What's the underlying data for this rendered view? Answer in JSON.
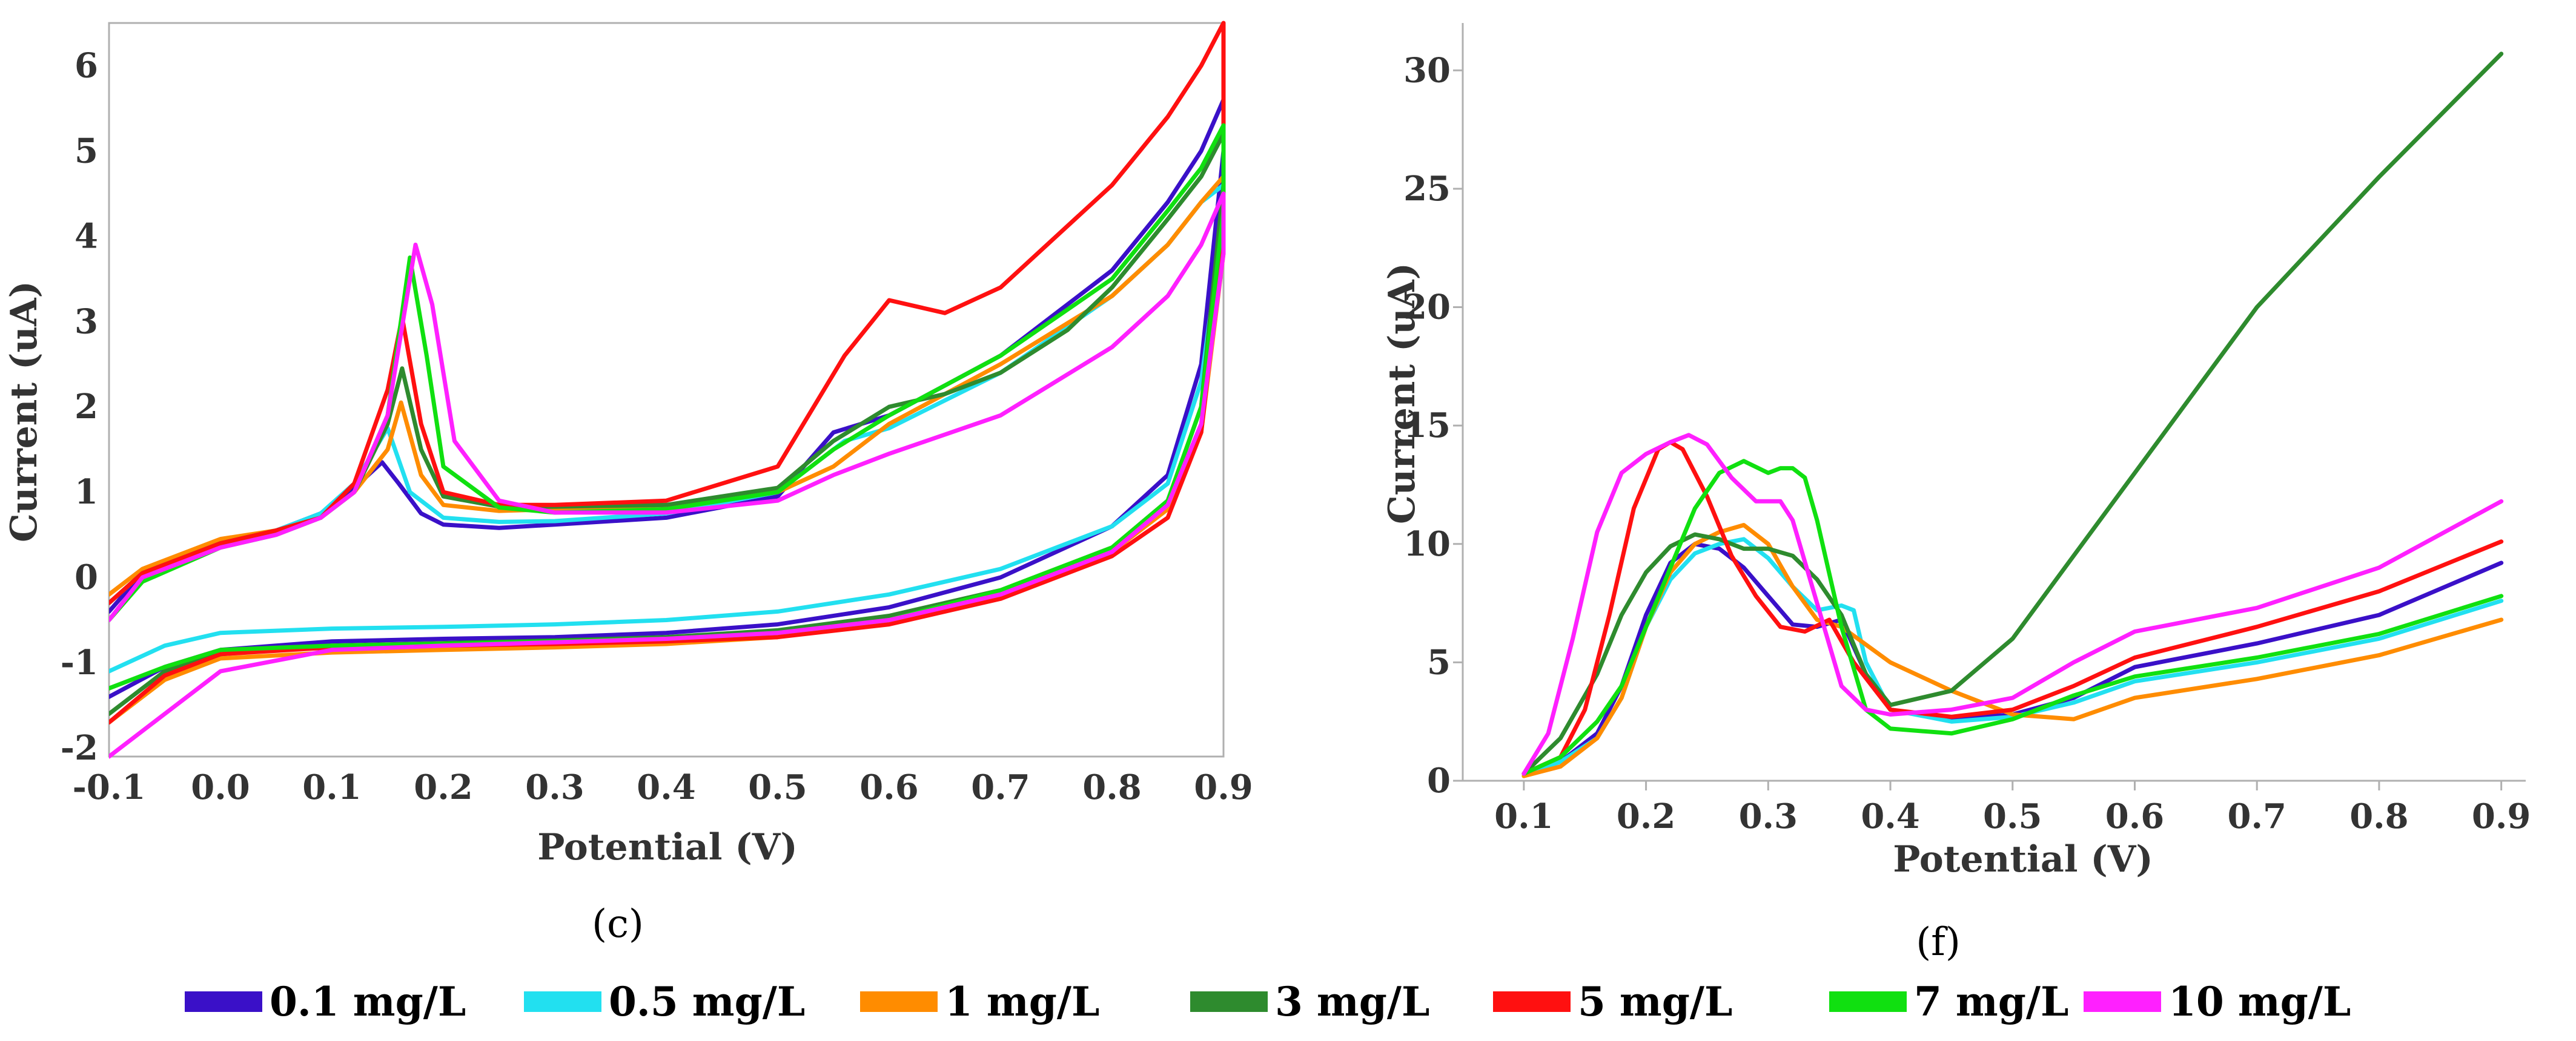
{
  "legend": {
    "items": [
      {
        "label": "0.1 mg/L",
        "color": "#3a10c8"
      },
      {
        "label": "0.5 mg/L",
        "color": "#22e0f0"
      },
      {
        "label": "1 mg/L",
        "color": "#ff8c00"
      },
      {
        "label": "3 mg/L",
        "color": "#2e8b2e"
      },
      {
        "label": "5 mg/L",
        "color": "#ff1010"
      },
      {
        "label": "7 mg/L",
        "color": "#10e010"
      },
      {
        "label": "10 mg/L",
        "color": "#ff20ff"
      }
    ]
  },
  "chart_data": [
    {
      "type": "line",
      "panel_label": "(c)",
      "xlabel": "Potential (V)",
      "ylabel": "Current (uA)",
      "xlim": [
        -0.1,
        0.9
      ],
      "ylim": [
        -2.1,
        6.5
      ],
      "xticks": [
        -0.1,
        0.0,
        0.1,
        0.2,
        0.3,
        0.4,
        0.5,
        0.6,
        0.7,
        0.8,
        0.9
      ],
      "xtick_labels": [
        "-0.1",
        "0.0",
        "0.1",
        "0.2",
        "0.3",
        "0.4",
        "0.5",
        "0.6",
        "0.7",
        "0.8",
        "0.9"
      ],
      "yticks": [
        -2,
        -1,
        0,
        1,
        2,
        3,
        4,
        5,
        6
      ],
      "ytick_labels": [
        "-2",
        "-1",
        "0",
        "1",
        "2",
        "3",
        "4",
        "5",
        "6"
      ],
      "series": [
        {
          "name": "0.1 mg/L",
          "x": [
            -0.1,
            -0.07,
            0.0,
            0.05,
            0.09,
            0.12,
            0.145,
            0.16,
            0.18,
            0.2,
            0.25,
            0.3,
            0.4,
            0.5,
            0.55,
            0.6,
            0.7,
            0.8,
            0.85,
            0.88,
            0.9,
            0.9,
            0.88,
            0.85,
            0.8,
            0.7,
            0.6,
            0.5,
            0.4,
            0.3,
            0.2,
            0.1,
            0.0,
            -0.05,
            -0.1
          ],
          "y": [
            -0.4,
            0.05,
            0.4,
            0.55,
            0.75,
            1.05,
            1.35,
            1.1,
            0.75,
            0.62,
            0.58,
            0.62,
            0.7,
            0.95,
            1.7,
            1.9,
            2.6,
            3.6,
            4.4,
            5.0,
            5.6,
            5.0,
            2.5,
            1.2,
            0.6,
            0.0,
            -0.35,
            -0.55,
            -0.65,
            -0.7,
            -0.72,
            -0.75,
            -0.85,
            -1.05,
            -1.4
          ]
        },
        {
          "name": "0.5 mg/L",
          "x": [
            -0.1,
            -0.07,
            0.0,
            0.05,
            0.09,
            0.12,
            0.15,
            0.17,
            0.2,
            0.25,
            0.3,
            0.4,
            0.5,
            0.56,
            0.6,
            0.7,
            0.8,
            0.85,
            0.88,
            0.9,
            0.9,
            0.88,
            0.85,
            0.8,
            0.7,
            0.6,
            0.5,
            0.4,
            0.3,
            0.2,
            0.1,
            0.0,
            -0.05,
            -0.1
          ],
          "y": [
            -0.3,
            0.05,
            0.4,
            0.55,
            0.75,
            1.1,
            1.75,
            1.0,
            0.7,
            0.65,
            0.66,
            0.75,
            1.0,
            1.6,
            1.75,
            2.4,
            3.3,
            3.9,
            4.4,
            4.6,
            4.2,
            2.3,
            1.1,
            0.6,
            0.1,
            -0.2,
            -0.4,
            -0.5,
            -0.55,
            -0.58,
            -0.6,
            -0.65,
            -0.8,
            -1.1
          ]
        },
        {
          "name": "1 mg/L",
          "x": [
            -0.1,
            -0.07,
            0.0,
            0.05,
            0.09,
            0.12,
            0.15,
            0.162,
            0.18,
            0.2,
            0.25,
            0.3,
            0.4,
            0.5,
            0.55,
            0.6,
            0.7,
            0.8,
            0.85,
            0.88,
            0.9,
            0.9,
            0.88,
            0.85,
            0.8,
            0.7,
            0.6,
            0.5,
            0.4,
            0.3,
            0.2,
            0.1,
            0.0,
            -0.05,
            -0.1
          ],
          "y": [
            -0.2,
            0.1,
            0.45,
            0.55,
            0.7,
            1.0,
            1.5,
            2.05,
            1.2,
            0.85,
            0.78,
            0.8,
            0.85,
            1.0,
            1.3,
            1.8,
            2.5,
            3.3,
            3.9,
            4.4,
            4.7,
            3.8,
            1.7,
            0.8,
            0.3,
            -0.2,
            -0.5,
            -0.7,
            -0.78,
            -0.82,
            -0.85,
            -0.88,
            -0.95,
            -1.2,
            -1.7
          ]
        },
        {
          "name": "3 mg/L",
          "x": [
            -0.1,
            -0.07,
            0.0,
            0.05,
            0.09,
            0.12,
            0.15,
            0.163,
            0.18,
            0.2,
            0.25,
            0.3,
            0.4,
            0.5,
            0.55,
            0.6,
            0.65,
            0.7,
            0.76,
            0.8,
            0.85,
            0.88,
            0.9,
            0.9,
            0.88,
            0.85,
            0.8,
            0.7,
            0.6,
            0.5,
            0.4,
            0.3,
            0.2,
            0.1,
            0.0,
            -0.05,
            -0.1
          ],
          "y": [
            -0.3,
            0.05,
            0.4,
            0.55,
            0.7,
            1.0,
            1.8,
            2.45,
            1.5,
            0.95,
            0.83,
            0.83,
            0.85,
            1.05,
            1.6,
            2.0,
            2.15,
            2.4,
            2.9,
            3.4,
            4.2,
            4.7,
            5.2,
            4.6,
            2.0,
            0.9,
            0.35,
            -0.15,
            -0.45,
            -0.62,
            -0.7,
            -0.74,
            -0.77,
            -0.8,
            -0.9,
            -1.1,
            -1.6
          ]
        },
        {
          "name": "5 mg/L",
          "x": [
            -0.1,
            -0.07,
            0.0,
            0.05,
            0.09,
            0.12,
            0.15,
            0.163,
            0.18,
            0.2,
            0.25,
            0.3,
            0.4,
            0.5,
            0.56,
            0.6,
            0.65,
            0.7,
            0.8,
            0.85,
            0.88,
            0.9,
            0.9,
            0.88,
            0.85,
            0.8,
            0.7,
            0.6,
            0.5,
            0.4,
            0.3,
            0.2,
            0.1,
            0.0,
            -0.05,
            -0.1
          ],
          "y": [
            -0.3,
            0.05,
            0.4,
            0.55,
            0.7,
            1.1,
            2.2,
            3.05,
            1.8,
            1.0,
            0.85,
            0.85,
            0.9,
            1.3,
            2.6,
            3.25,
            3.1,
            3.4,
            4.6,
            5.4,
            6.0,
            6.5,
            4.0,
            1.7,
            0.7,
            0.25,
            -0.25,
            -0.55,
            -0.7,
            -0.75,
            -0.78,
            -0.8,
            -0.82,
            -0.9,
            -1.15,
            -1.7
          ]
        },
        {
          "name": "7 mg/L",
          "x": [
            -0.1,
            -0.07,
            0.0,
            0.05,
            0.09,
            0.12,
            0.15,
            0.17,
            0.185,
            0.2,
            0.25,
            0.3,
            0.4,
            0.5,
            0.55,
            0.6,
            0.7,
            0.8,
            0.85,
            0.88,
            0.9,
            0.9,
            0.88,
            0.85,
            0.8,
            0.7,
            0.6,
            0.5,
            0.4,
            0.3,
            0.2,
            0.1,
            0.0,
            -0.05,
            -0.1
          ],
          "y": [
            -0.5,
            -0.05,
            0.35,
            0.5,
            0.7,
            1.0,
            1.9,
            3.75,
            2.6,
            1.3,
            0.82,
            0.76,
            0.8,
            1.0,
            1.5,
            1.9,
            2.6,
            3.5,
            4.3,
            4.8,
            5.3,
            4.3,
            2.0,
            0.9,
            0.35,
            -0.15,
            -0.5,
            -0.65,
            -0.72,
            -0.75,
            -0.78,
            -0.8,
            -0.85,
            -1.05,
            -1.3
          ]
        },
        {
          "name": "10 mg/L",
          "x": [
            -0.1,
            -0.07,
            0.0,
            0.05,
            0.09,
            0.12,
            0.15,
            0.175,
            0.19,
            0.21,
            0.25,
            0.3,
            0.4,
            0.5,
            0.55,
            0.6,
            0.7,
            0.8,
            0.85,
            0.88,
            0.9,
            0.9,
            0.88,
            0.85,
            0.8,
            0.7,
            0.6,
            0.5,
            0.4,
            0.3,
            0.2,
            0.1,
            0.0,
            -0.05,
            -0.1
          ],
          "y": [
            -0.5,
            0.0,
            0.35,
            0.5,
            0.7,
            1.0,
            1.9,
            3.9,
            3.2,
            1.6,
            0.9,
            0.76,
            0.76,
            0.9,
            1.2,
            1.45,
            1.9,
            2.7,
            3.3,
            3.9,
            4.5,
            3.8,
            1.8,
            0.85,
            0.3,
            -0.2,
            -0.5,
            -0.65,
            -0.72,
            -0.76,
            -0.8,
            -0.85,
            -1.1,
            -1.6,
            -2.1
          ]
        }
      ]
    },
    {
      "type": "line",
      "panel_label": "(f)",
      "xlabel": "Potential (V)",
      "ylabel": "Current (uA)",
      "xlim": [
        0.05,
        0.92
      ],
      "ylim": [
        0,
        32
      ],
      "xticks": [
        0.1,
        0.2,
        0.3,
        0.4,
        0.5,
        0.6,
        0.7,
        0.8,
        0.9
      ],
      "xtick_labels": [
        "0.1",
        "0.2",
        "0.3",
        "0.4",
        "0.5",
        "0.6",
        "0.7",
        "0.8",
        "0.9"
      ],
      "yticks": [
        0,
        5,
        10,
        15,
        20,
        25,
        30
      ],
      "ytick_labels": [
        "0",
        "5",
        "10",
        "15",
        "20",
        "25",
        "30"
      ],
      "series": [
        {
          "name": "0.1 mg/L",
          "x": [
            0.1,
            0.13,
            0.16,
            0.18,
            0.2,
            0.22,
            0.24,
            0.26,
            0.28,
            0.3,
            0.32,
            0.34,
            0.36,
            0.38,
            0.4,
            0.45,
            0.5,
            0.55,
            0.6,
            0.7,
            0.8,
            0.9
          ],
          "y": [
            0.3,
            0.8,
            2.0,
            4.0,
            7.0,
            9.2,
            10.0,
            9.8,
            9.0,
            7.8,
            6.6,
            6.5,
            6.8,
            4.5,
            3.0,
            2.6,
            2.8,
            3.5,
            4.8,
            5.8,
            7.0,
            9.2
          ]
        },
        {
          "name": "0.5 mg/L",
          "x": [
            0.1,
            0.13,
            0.16,
            0.18,
            0.2,
            0.22,
            0.24,
            0.26,
            0.28,
            0.3,
            0.32,
            0.34,
            0.36,
            0.37,
            0.38,
            0.4,
            0.45,
            0.5,
            0.55,
            0.6,
            0.7,
            0.8,
            0.9
          ],
          "y": [
            0.3,
            0.8,
            1.8,
            3.5,
            6.5,
            8.5,
            9.6,
            10.0,
            10.2,
            9.4,
            8.2,
            7.2,
            7.4,
            7.2,
            5.0,
            3.0,
            2.5,
            2.7,
            3.3,
            4.2,
            5.0,
            6.0,
            7.6
          ]
        },
        {
          "name": "1 mg/L",
          "x": [
            0.1,
            0.13,
            0.16,
            0.18,
            0.2,
            0.22,
            0.24,
            0.26,
            0.28,
            0.3,
            0.32,
            0.34,
            0.36,
            0.4,
            0.45,
            0.5,
            0.55,
            0.6,
            0.7,
            0.8,
            0.9
          ],
          "y": [
            0.2,
            0.6,
            1.8,
            3.5,
            6.5,
            8.8,
            10.0,
            10.5,
            10.8,
            10.0,
            8.2,
            6.8,
            6.5,
            5.0,
            3.8,
            2.8,
            2.6,
            3.5,
            4.3,
            5.3,
            6.8
          ]
        },
        {
          "name": "3 mg/L",
          "x": [
            0.1,
            0.13,
            0.16,
            0.18,
            0.2,
            0.22,
            0.24,
            0.26,
            0.28,
            0.3,
            0.32,
            0.34,
            0.36,
            0.38,
            0.4,
            0.45,
            0.5,
            0.55,
            0.6,
            0.7,
            0.8,
            0.9
          ],
          "y": [
            0.3,
            1.8,
            4.5,
            7.0,
            8.8,
            9.9,
            10.4,
            10.2,
            9.8,
            9.8,
            9.5,
            8.5,
            7.0,
            4.5,
            3.2,
            3.8,
            6.0,
            9.5,
            13.0,
            20.0,
            25.5,
            30.7
          ]
        },
        {
          "name": "5 mg/L",
          "x": [
            0.1,
            0.13,
            0.15,
            0.17,
            0.19,
            0.21,
            0.22,
            0.23,
            0.25,
            0.27,
            0.29,
            0.31,
            0.33,
            0.35,
            0.37,
            0.4,
            0.45,
            0.5,
            0.55,
            0.6,
            0.7,
            0.8,
            0.9
          ],
          "y": [
            0.3,
            1.0,
            3.0,
            7.0,
            11.5,
            14.0,
            14.3,
            14.0,
            12.0,
            9.5,
            7.8,
            6.5,
            6.3,
            6.8,
            5.0,
            3.0,
            2.7,
            3.0,
            4.0,
            5.2,
            6.5,
            8.0,
            10.1
          ]
        },
        {
          "name": "7 mg/L",
          "x": [
            0.1,
            0.13,
            0.16,
            0.18,
            0.2,
            0.22,
            0.24,
            0.26,
            0.28,
            0.3,
            0.31,
            0.32,
            0.33,
            0.34,
            0.36,
            0.38,
            0.4,
            0.45,
            0.5,
            0.55,
            0.6,
            0.7,
            0.8,
            0.9
          ],
          "y": [
            0.3,
            1.0,
            2.5,
            4.0,
            6.5,
            9.0,
            11.5,
            13.0,
            13.5,
            13.0,
            13.2,
            13.2,
            12.8,
            11.0,
            6.5,
            3.0,
            2.2,
            2.0,
            2.6,
            3.6,
            4.4,
            5.2,
            6.2,
            7.8
          ]
        },
        {
          "name": "10 mg/L",
          "x": [
            0.1,
            0.12,
            0.14,
            0.16,
            0.18,
            0.2,
            0.22,
            0.235,
            0.25,
            0.27,
            0.29,
            0.31,
            0.32,
            0.34,
            0.36,
            0.38,
            0.4,
            0.45,
            0.5,
            0.55,
            0.6,
            0.7,
            0.8,
            0.9
          ],
          "y": [
            0.3,
            2.0,
            6.0,
            10.5,
            13.0,
            13.8,
            14.3,
            14.6,
            14.2,
            12.8,
            11.8,
            11.8,
            11.0,
            7.5,
            4.0,
            3.0,
            2.8,
            3.0,
            3.5,
            5.0,
            6.3,
            7.3,
            9.0,
            11.8
          ]
        }
      ]
    }
  ]
}
